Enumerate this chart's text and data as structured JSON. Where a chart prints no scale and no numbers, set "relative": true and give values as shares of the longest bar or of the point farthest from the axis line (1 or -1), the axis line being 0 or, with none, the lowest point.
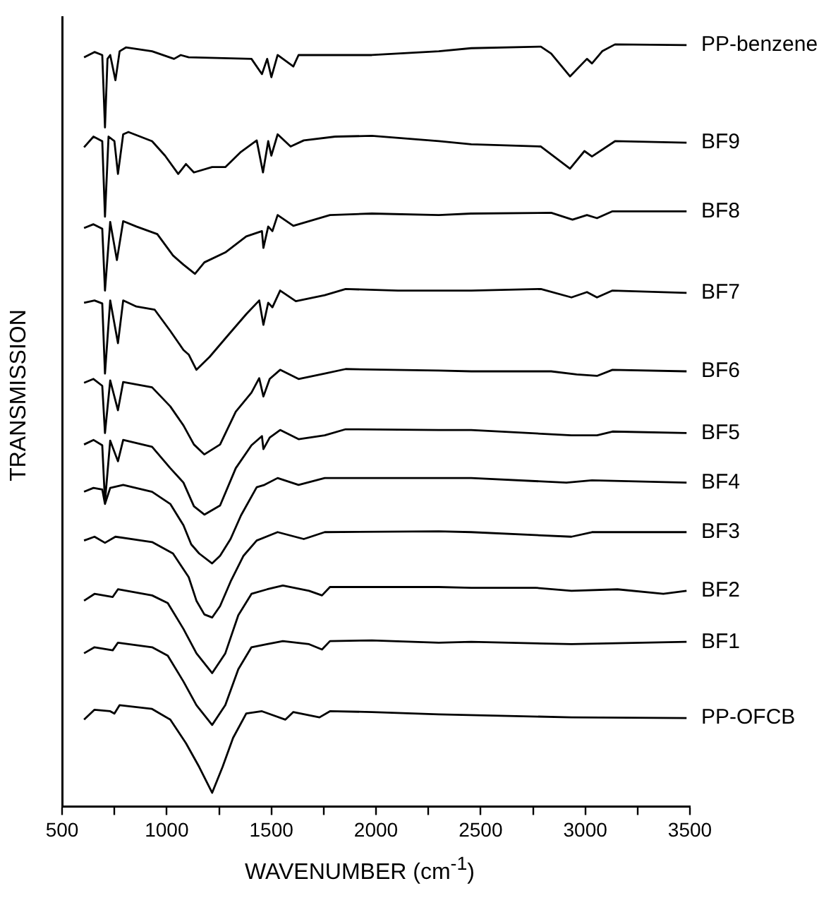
{
  "chart_data": {
    "type": "line",
    "relative": true,
    "xlabel": "WAVENUMBER (cm$^{-1}$)",
    "ylabel": "TRANSMISSION",
    "xlim": [
      500,
      3500
    ],
    "xticks": [
      500,
      {
        "value": 750,
        "label": null
      },
      1000,
      {
        "value": 1250,
        "label": null
      },
      1500,
      {
        "value": 1750,
        "label": null
      },
      2000,
      {
        "value": 2250,
        "label": null
      },
      2500,
      {
        "value": 2750,
        "label": null
      },
      3000,
      {
        "value": 3250,
        "label": null
      },
      3500
    ],
    "grid": false,
    "legend": false,
    "marker": "none",
    "line_style": "solid",
    "series": [
      {
        "name": "PP-benzene",
        "color": "#000000",
        "x": [
          605,
          655,
          692,
          705,
          717,
          730,
          755,
          775,
          805,
          930,
          1035,
          1067,
          1105,
          1405,
          1455,
          1480,
          1500,
          1530,
          1605,
          1630,
          1980,
          2300,
          2455,
          2788,
          2837,
          2927,
          3008,
          3032,
          3081,
          3142,
          3484
        ],
        "values": [
          0.983,
          0.99,
          0.986,
          0.891,
          0.981,
          0.986,
          0.953,
          0.991,
          0.996,
          0.991,
          0.981,
          0.986,
          0.983,
          0.981,
          0.961,
          0.981,
          0.957,
          0.986,
          0.971,
          0.986,
          0.986,
          0.991,
          0.995,
          0.997,
          0.988,
          0.958,
          0.981,
          0.975,
          0.991,
          1,
          0.999
        ]
      },
      {
        "name": "BF9",
        "color": "#000000",
        "x": [
          605,
          650,
          692,
          705,
          722,
          750,
          767,
          792,
          817,
          930,
          992,
          1055,
          1092,
          1130,
          1217,
          1280,
          1355,
          1430,
          1460,
          1485,
          1500,
          1530,
          1592,
          1655,
          1805,
          1980,
          2300,
          2455,
          2788,
          2927,
          2996,
          3032,
          3142,
          3484
        ],
        "values": [
          0.865,
          0.879,
          0.873,
          0.774,
          0.879,
          0.873,
          0.83,
          0.882,
          0.885,
          0.873,
          0.854,
          0.83,
          0.843,
          0.832,
          0.839,
          0.839,
          0.859,
          0.874,
          0.832,
          0.873,
          0.854,
          0.882,
          0.866,
          0.874,
          0.879,
          0.88,
          0.873,
          0.869,
          0.866,
          0.837,
          0.86,
          0.853,
          0.873,
          0.871
        ]
      },
      {
        "name": "BF8",
        "color": "#000000",
        "x": [
          605,
          650,
          692,
          705,
          730,
          762,
          792,
          855,
          955,
          1030,
          1080,
          1135,
          1180,
          1280,
          1380,
          1455,
          1462,
          1485,
          1505,
          1530,
          1605,
          1780,
          1980,
          2300,
          2455,
          2837,
          2939,
          3008,
          3056,
          3130,
          3484
        ],
        "values": [
          0.759,
          0.764,
          0.758,
          0.677,
          0.767,
          0.717,
          0.768,
          0.761,
          0.751,
          0.723,
          0.711,
          0.699,
          0.714,
          0.727,
          0.748,
          0.755,
          0.733,
          0.761,
          0.755,
          0.776,
          0.762,
          0.776,
          0.778,
          0.776,
          0.778,
          0.779,
          0.77,
          0.776,
          0.772,
          0.781,
          0.781
        ]
      },
      {
        "name": "BF7",
        "color": "#000000",
        "x": [
          605,
          655,
          692,
          705,
          730,
          767,
          792,
          855,
          942,
          1017,
          1080,
          1105,
          1142,
          1205,
          1292,
          1380,
          1442,
          1462,
          1485,
          1505,
          1542,
          1617,
          1755,
          1855,
          2105,
          2455,
          2788,
          2934,
          3008,
          3056,
          3130,
          3484
        ],
        "values": [
          0.661,
          0.664,
          0.66,
          0.568,
          0.664,
          0.608,
          0.664,
          0.656,
          0.652,
          0.624,
          0.599,
          0.593,
          0.573,
          0.59,
          0.618,
          0.646,
          0.664,
          0.632,
          0.661,
          0.655,
          0.677,
          0.663,
          0.671,
          0.679,
          0.677,
          0.677,
          0.679,
          0.668,
          0.675,
          0.668,
          0.677,
          0.674
        ]
      },
      {
        "name": "BF6",
        "color": "#000000",
        "x": [
          605,
          650,
          692,
          705,
          730,
          767,
          792,
          930,
          1017,
          1080,
          1130,
          1180,
          1255,
          1330,
          1405,
          1442,
          1462,
          1492,
          1542,
          1630,
          1755,
          1855,
          2300,
          2455,
          2837,
          2959,
          3056,
          3130,
          3484
        ],
        "values": [
          0.556,
          0.561,
          0.552,
          0.49,
          0.559,
          0.52,
          0.557,
          0.55,
          0.525,
          0.5,
          0.475,
          0.462,
          0.475,
          0.518,
          0.543,
          0.562,
          0.538,
          0.561,
          0.573,
          0.561,
          0.568,
          0.574,
          0.572,
          0.571,
          0.571,
          0.567,
          0.565,
          0.573,
          0.571
        ]
      },
      {
        "name": "BF5",
        "color": "#000000",
        "x": [
          605,
          650,
          692,
          705,
          730,
          767,
          792,
          930,
          1017,
          1080,
          1130,
          1180,
          1255,
          1330,
          1405,
          1455,
          1462,
          1492,
          1542,
          1630,
          1755,
          1855,
          2300,
          2455,
          2934,
          3056,
          3130,
          3484
        ],
        "values": [
          0.475,
          0.481,
          0.474,
          0.4,
          0.48,
          0.453,
          0.481,
          0.472,
          0.444,
          0.425,
          0.394,
          0.383,
          0.395,
          0.444,
          0.474,
          0.486,
          0.469,
          0.484,
          0.494,
          0.482,
          0.487,
          0.495,
          0.494,
          0.494,
          0.487,
          0.487,
          0.492,
          0.49
        ]
      },
      {
        "name": "BF4",
        "color": "#000000",
        "x": [
          605,
          650,
          692,
          705,
          730,
          792,
          930,
          1017,
          1080,
          1117,
          1155,
          1217,
          1255,
          1305,
          1355,
          1430,
          1467,
          1530,
          1630,
          1755,
          1855,
          2300,
          2455,
          2910,
          3032,
          3484
        ],
        "values": [
          0.413,
          0.418,
          0.416,
          0.397,
          0.418,
          0.422,
          0.413,
          0.397,
          0.369,
          0.344,
          0.332,
          0.319,
          0.329,
          0.351,
          0.382,
          0.419,
          0.422,
          0.431,
          0.422,
          0.431,
          0.431,
          0.431,
          0.431,
          0.425,
          0.428,
          0.425
        ]
      },
      {
        "name": "BF3",
        "color": "#000000",
        "x": [
          605,
          655,
          705,
          755,
          930,
          1030,
          1105,
          1142,
          1180,
          1217,
          1255,
          1305,
          1367,
          1430,
          1530,
          1655,
          1755,
          2300,
          2455,
          2934,
          3032,
          3484
        ],
        "values": [
          0.349,
          0.354,
          0.346,
          0.354,
          0.347,
          0.332,
          0.301,
          0.27,
          0.252,
          0.248,
          0.263,
          0.295,
          0.329,
          0.349,
          0.36,
          0.351,
          0.36,
          0.361,
          0.36,
          0.354,
          0.36,
          0.36
        ]
      },
      {
        "name": "BF2",
        "color": "#000000",
        "x": [
          605,
          655,
          742,
          767,
          930,
          1005,
          1080,
          1142,
          1217,
          1280,
          1342,
          1405,
          1480,
          1555,
          1680,
          1742,
          1780,
          1980,
          2300,
          2455,
          2763,
          2934,
          3154,
          3373,
          3484
        ],
        "values": [
          0.27,
          0.279,
          0.275,
          0.285,
          0.277,
          0.267,
          0.233,
          0.201,
          0.175,
          0.201,
          0.251,
          0.279,
          0.285,
          0.29,
          0.283,
          0.277,
          0.288,
          0.288,
          0.288,
          0.287,
          0.287,
          0.283,
          0.285,
          0.279,
          0.283
        ]
      },
      {
        "name": "BF1",
        "color": "#000000",
        "x": [
          605,
          655,
          742,
          767,
          930,
          1005,
          1080,
          1142,
          1217,
          1280,
          1342,
          1405,
          1480,
          1555,
          1680,
          1742,
          1780,
          1980,
          2300,
          2455,
          2934,
          3484
        ],
        "values": [
          0.201,
          0.209,
          0.205,
          0.215,
          0.209,
          0.198,
          0.164,
          0.133,
          0.107,
          0.133,
          0.18,
          0.209,
          0.213,
          0.217,
          0.213,
          0.206,
          0.217,
          0.218,
          0.215,
          0.216,
          0.213,
          0.216
        ]
      },
      {
        "name": "PP-OFCB",
        "color": "#000000",
        "x": [
          605,
          655,
          730,
          750,
          775,
          930,
          1017,
          1092,
          1155,
          1217,
          1267,
          1317,
          1380,
          1455,
          1567,
          1605,
          1730,
          1780,
          1980,
          2300,
          2934,
          3484
        ],
        "values": [
          0.114,
          0.127,
          0.125,
          0.122,
          0.133,
          0.128,
          0.114,
          0.083,
          0.052,
          0.018,
          0.052,
          0.09,
          0.122,
          0.125,
          0.114,
          0.124,
          0.117,
          0.125,
          0.124,
          0.121,
          0.117,
          0.116
        ]
      }
    ]
  }
}
